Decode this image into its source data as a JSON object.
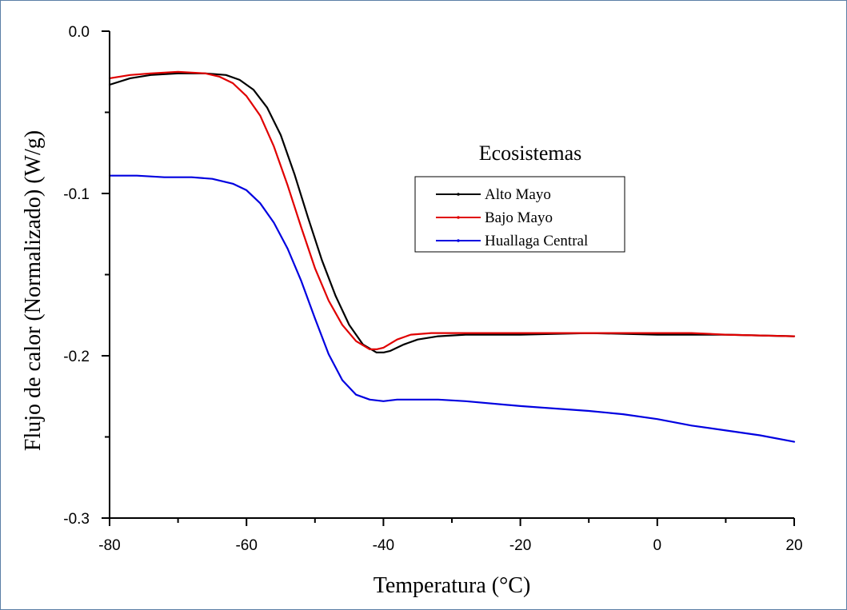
{
  "chart_data": {
    "type": "line",
    "xlabel": "Temperatura (°C)",
    "ylabel": "Flujo de calor (Normalizado) (W/g)",
    "xlim": [
      -80,
      20
    ],
    "ylim": [
      -0.3,
      0.0
    ],
    "xticks": [
      -80,
      -60,
      -40,
      -20,
      0,
      20
    ],
    "xtick_labels": [
      "-80",
      "-60",
      "-40",
      "-20",
      "0",
      "20"
    ],
    "yticks": [
      0.0,
      -0.1,
      -0.2,
      -0.3
    ],
    "ytick_labels": [
      "0.0",
      "-0.1",
      "-0.2",
      "-0.3"
    ],
    "grid": false,
    "legend": {
      "title": "Ecosistemas",
      "placement": "upper-center"
    },
    "series": [
      {
        "name": "Alto Mayo",
        "color": "#000000",
        "x": [
          -80,
          -77,
          -74,
          -70,
          -66,
          -63,
          -61,
          -59,
          -57,
          -55,
          -53,
          -51,
          -49,
          -47,
          -45,
          -43,
          -41,
          -40,
          -39,
          -37,
          -35,
          -32,
          -28,
          -20,
          -10,
          0,
          10,
          20
        ],
        "y": [
          -0.033,
          -0.029,
          -0.027,
          -0.026,
          -0.026,
          -0.027,
          -0.03,
          -0.036,
          -0.047,
          -0.064,
          -0.088,
          -0.115,
          -0.141,
          -0.163,
          -0.181,
          -0.193,
          -0.198,
          -0.198,
          -0.197,
          -0.193,
          -0.19,
          -0.188,
          -0.187,
          -0.187,
          -0.186,
          -0.187,
          -0.187,
          -0.188
        ]
      },
      {
        "name": "Bajo Mayo",
        "color": "#e00000",
        "x": [
          -80,
          -77,
          -74,
          -70,
          -66,
          -64,
          -62,
          -60,
          -58,
          -56,
          -54,
          -52,
          -50,
          -48,
          -46,
          -44,
          -42,
          -41,
          -40,
          -38,
          -36,
          -33,
          -28,
          -20,
          -10,
          0,
          5,
          10,
          20
        ],
        "y": [
          -0.029,
          -0.027,
          -0.026,
          -0.025,
          -0.026,
          -0.028,
          -0.032,
          -0.04,
          -0.052,
          -0.071,
          -0.095,
          -0.121,
          -0.146,
          -0.166,
          -0.181,
          -0.191,
          -0.196,
          -0.196,
          -0.195,
          -0.19,
          -0.187,
          -0.186,
          -0.186,
          -0.186,
          -0.186,
          -0.186,
          -0.186,
          -0.187,
          -0.188
        ]
      },
      {
        "name": "Huallaga Central",
        "color": "#0000e0",
        "x": [
          -80,
          -76,
          -72,
          -68,
          -65,
          -62,
          -60,
          -58,
          -56,
          -54,
          -52,
          -50,
          -48,
          -46,
          -44,
          -42,
          -40,
          -38,
          -35,
          -32,
          -28,
          -20,
          -10,
          -5,
          0,
          5,
          10,
          15,
          20
        ],
        "y": [
          -0.089,
          -0.089,
          -0.09,
          -0.09,
          -0.091,
          -0.094,
          -0.098,
          -0.106,
          -0.118,
          -0.134,
          -0.154,
          -0.177,
          -0.199,
          -0.215,
          -0.224,
          -0.227,
          -0.228,
          -0.227,
          -0.227,
          -0.227,
          -0.228,
          -0.231,
          -0.234,
          -0.236,
          -0.239,
          -0.243,
          -0.246,
          -0.249,
          -0.253
        ]
      }
    ]
  }
}
